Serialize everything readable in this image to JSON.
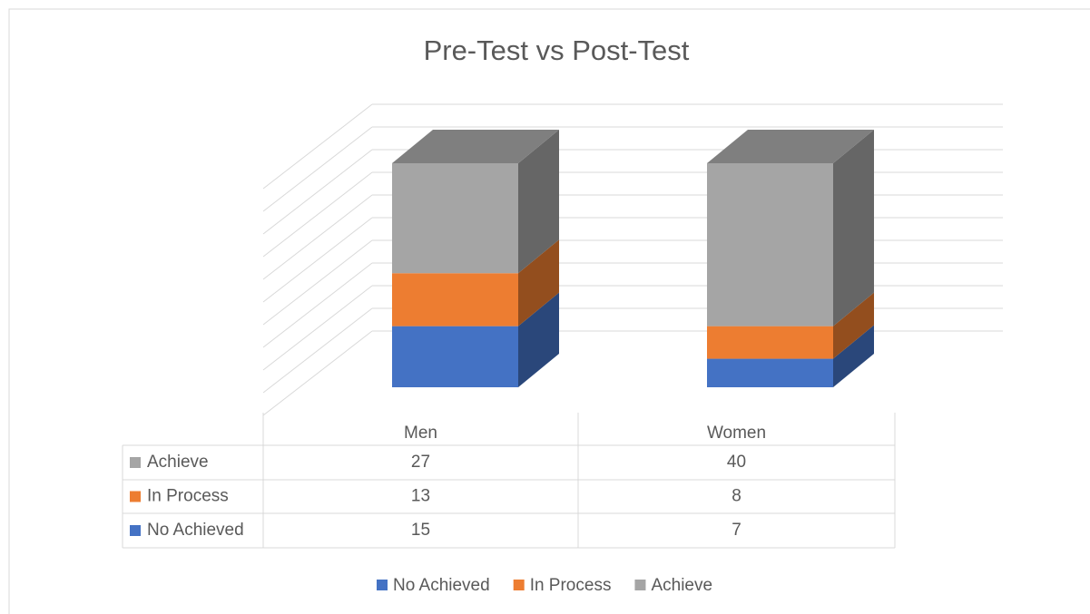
{
  "chart_data": {
    "type": "bar3d_stacked",
    "title": "Pre-Test vs Post-Test",
    "categories": [
      "Men",
      "Women"
    ],
    "series": [
      {
        "name": "No Achieved",
        "color": "#4472c4",
        "values": [
          15,
          7
        ]
      },
      {
        "name": "In Process",
        "color": "#ed7d31",
        "values": [
          13,
          8
        ]
      },
      {
        "name": "Achieve",
        "color": "#a5a5a5",
        "values": [
          27,
          40
        ]
      }
    ],
    "ylim": [
      0,
      60
    ],
    "yticks": [
      0,
      6,
      12,
      18,
      24,
      30,
      36,
      42,
      48,
      54,
      60
    ],
    "grid": true
  }
}
